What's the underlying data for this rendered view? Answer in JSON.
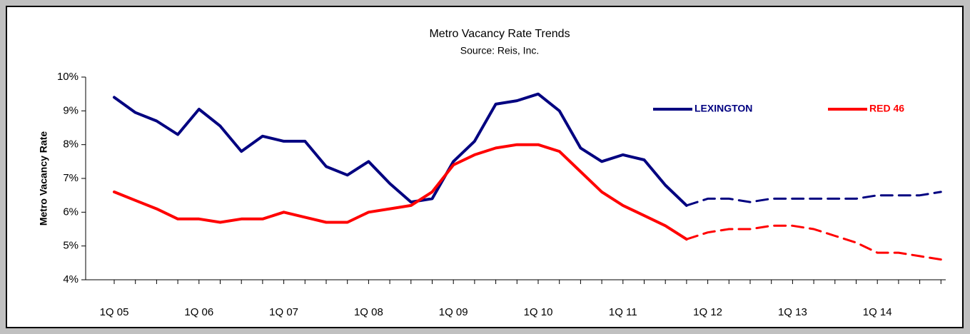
{
  "chart_data": {
    "type": "line",
    "title": "Metro Vacancy Rate Trends",
    "subtitle": "Source:  Reis, Inc.",
    "y_label": "Metro Vacancy Rate",
    "categories": [
      "1Q 05",
      null,
      null,
      null,
      "1Q 06",
      null,
      null,
      null,
      "1Q 07",
      null,
      null,
      null,
      "1Q 08",
      null,
      null,
      null,
      "1Q 09",
      null,
      null,
      null,
      "1Q 10",
      null,
      null,
      null,
      "1Q 11",
      null,
      null,
      null,
      "1Q 12",
      null,
      null,
      null,
      "1Q 13",
      null,
      null,
      null,
      "1Q 14",
      null,
      null,
      null
    ],
    "series": [
      {
        "name": "LEXINGTON",
        "color": "#000080",
        "values": [
          9.4,
          8.95,
          8.7,
          8.3,
          9.05,
          8.55,
          7.8,
          8.25,
          8.1,
          8.1,
          7.35,
          7.1,
          7.5,
          6.85,
          6.3,
          6.4,
          7.5,
          8.1,
          9.2,
          9.3,
          9.5,
          9.0,
          7.9,
          7.5,
          7.7,
          7.55,
          6.8,
          6.2,
          6.4,
          6.4,
          6.3,
          6.4,
          6.4,
          6.4,
          6.4,
          6.4,
          6.5,
          6.5,
          6.5,
          6.6
        ]
      },
      {
        "name": "RED 46",
        "color": "#ff0000",
        "values": [
          6.6,
          6.35,
          6.1,
          5.8,
          5.8,
          5.7,
          5.8,
          5.8,
          6.0,
          5.85,
          5.7,
          5.7,
          6.0,
          6.1,
          6.2,
          6.6,
          7.4,
          7.7,
          7.9,
          8.0,
          8.0,
          7.8,
          7.2,
          6.6,
          6.2,
          5.9,
          5.6,
          5.2,
          5.4,
          5.5,
          5.5,
          5.6,
          5.6,
          5.5,
          5.3,
          5.1,
          4.8,
          4.8,
          4.7,
          4.6
        ]
      }
    ],
    "forecast_start": 27,
    "ylim": [
      4,
      10
    ],
    "yticks": [
      {
        "value": 4,
        "label": "4%"
      },
      {
        "value": 5,
        "label": "5%"
      },
      {
        "value": 6,
        "label": "6%"
      },
      {
        "value": 7,
        "label": "7%"
      },
      {
        "value": 8,
        "label": "8%"
      },
      {
        "value": 9,
        "label": "9%"
      },
      {
        "value": 10,
        "label": "10%"
      }
    ],
    "grid": false,
    "legend": "top-right"
  }
}
